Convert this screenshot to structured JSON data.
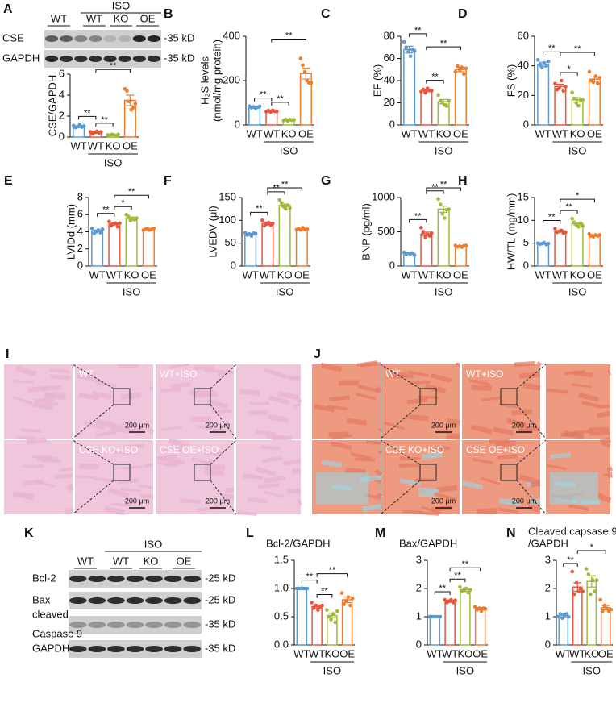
{
  "chart_data": [
    {
      "type": "bar",
      "ylabel": [
        "CSE/GAPDH"
      ],
      "categories": [
        "WT",
        "WT",
        "KO",
        "OE"
      ],
      "group_label": "ISO",
      "colors": [
        "#5b9bd5",
        "#e8553e",
        "#9dbb3a",
        "#f07b2a"
      ],
      "values": [
        1.0,
        0.45,
        0.2,
        3.5
      ],
      "errors": [
        0.1,
        0.1,
        0.04,
        0.5
      ],
      "points": [
        [
          1.1,
          0.9,
          1.0,
          1.2,
          0.95,
          1.05
        ],
        [
          0.5,
          0.3,
          0.45,
          0.55,
          0.4,
          0.5
        ],
        [
          0.2,
          0.15,
          0.25,
          0.2,
          0.1,
          0.25
        ],
        [
          4.6,
          4.4,
          3.4,
          2.6,
          2.8,
          3.2
        ]
      ],
      "ylim": [
        0,
        6
      ],
      "yticks": [
        0,
        2,
        4,
        6
      ],
      "brackets": [
        {
          "pair": [
            0,
            1
          ],
          "label": "**"
        },
        {
          "pair": [
            1,
            2
          ],
          "label": "**"
        },
        {
          "pair": [
            1,
            3
          ],
          "label": "**"
        }
      ]
    },
    {
      "type": "bar",
      "panel": "B",
      "ylabel": [
        "H₂S levels",
        "(nmol/mg protein)"
      ],
      "categories": [
        "WT",
        "WT",
        "KO",
        "OE"
      ],
      "group_label": "ISO",
      "colors": [
        "#5b9bd5",
        "#e8553e",
        "#9dbb3a",
        "#f07b2a"
      ],
      "values": [
        80,
        62,
        22,
        232
      ],
      "errors": [
        5,
        4,
        3,
        25
      ],
      "points": [
        [
          85,
          78,
          82,
          75,
          80,
          84
        ],
        [
          60,
          65,
          58,
          66,
          62,
          61
        ],
        [
          20,
          25,
          18,
          24,
          22,
          23
        ],
        [
          300,
          270,
          240,
          200,
          190,
          190
        ]
      ],
      "ylim": [
        0,
        400
      ],
      "yticks": [
        0,
        200,
        400
      ],
      "brackets": [
        {
          "pair": [
            0,
            1
          ],
          "label": "**"
        },
        {
          "pair": [
            1,
            2
          ],
          "label": "**"
        },
        {
          "pair": [
            1,
            3
          ],
          "label": "**"
        }
      ]
    },
    {
      "type": "bar",
      "panel": "C",
      "ylabel": [
        "EF (%)"
      ],
      "categories": [
        "WT",
        "WT",
        "KO",
        "OE"
      ],
      "group_label": "ISO",
      "colors": [
        "#5b9bd5",
        "#e8553e",
        "#9dbb3a",
        "#f07b2a"
      ],
      "values": [
        68,
        31,
        21,
        50
      ],
      "errors": [
        3,
        1,
        2,
        2
      ],
      "points": [
        [
          75,
          70,
          66,
          62,
          68,
          67
        ],
        [
          30,
          32,
          29,
          33,
          31,
          31
        ],
        [
          27,
          22,
          20,
          18,
          17,
          22
        ],
        [
          48,
          53,
          50,
          52,
          46,
          51
        ]
      ],
      "ylim": [
        0,
        80
      ],
      "yticks": [
        0,
        20,
        40,
        60,
        80
      ],
      "brackets": [
        {
          "pair": [
            0,
            1
          ],
          "label": "**"
        },
        {
          "pair": [
            1,
            2
          ],
          "label": "**"
        },
        {
          "pair": [
            1,
            3
          ],
          "label": "**"
        }
      ]
    },
    {
      "type": "bar",
      "panel": "D",
      "ylabel": [
        "FS (%)"
      ],
      "categories": [
        "WT",
        "WT",
        "KO",
        "OE"
      ],
      "group_label": "ISO",
      "colors": [
        "#5b9bd5",
        "#e8553e",
        "#9dbb3a",
        "#f07b2a"
      ],
      "values": [
        41,
        26,
        17,
        31
      ],
      "errors": [
        1.5,
        1.5,
        1.5,
        1.5
      ],
      "points": [
        [
          44,
          41,
          39,
          42,
          40,
          43
        ],
        [
          28,
          24,
          25,
          30,
          23,
          26
        ],
        [
          22,
          18,
          15,
          13,
          17,
          17
        ],
        [
          36,
          30,
          29,
          33,
          28,
          32
        ]
      ],
      "ylim": [
        0,
        60
      ],
      "yticks": [
        0,
        20,
        40,
        60
      ],
      "brackets": [
        {
          "pair": [
            0,
            1
          ],
          "label": "**"
        },
        {
          "pair": [
            1,
            2
          ],
          "label": "*"
        },
        {
          "pair": [
            1,
            3
          ],
          "label": "**"
        }
      ]
    },
    {
      "type": "bar",
      "panel": "E",
      "ylabel": [
        "LVIDd (mm)"
      ],
      "categories": [
        "WT",
        "WT",
        "KO",
        "OE"
      ],
      "group_label": "ISO",
      "colors": [
        "#5b9bd5",
        "#e8553e",
        "#9dbb3a",
        "#f07b2a"
      ],
      "values": [
        4.1,
        4.9,
        5.6,
        4.3
      ],
      "errors": [
        0.1,
        0.1,
        0.12,
        0.05
      ],
      "points": [
        [
          4.4,
          3.8,
          4.0,
          4.2,
          3.9,
          4.3
        ],
        [
          5.2,
          4.7,
          4.9,
          5.0,
          4.6,
          5.0
        ],
        [
          6.0,
          5.8,
          5.3,
          5.5,
          5.4,
          5.6
        ],
        [
          4.2,
          4.3,
          4.4,
          4.2,
          4.3,
          4.4
        ]
      ],
      "ylim": [
        0,
        8
      ],
      "yticks": [
        0,
        2,
        4,
        6,
        8
      ],
      "brackets": [
        {
          "pair": [
            0,
            1
          ],
          "label": "**"
        },
        {
          "pair": [
            1,
            2
          ],
          "label": "*"
        },
        {
          "pair": [
            1,
            3
          ],
          "label": "**"
        }
      ]
    },
    {
      "type": "bar",
      "panel": "F",
      "ylabel": [
        "LVEDV (μl)"
      ],
      "categories": [
        "WT",
        "WT",
        "KO",
        "OE"
      ],
      "group_label": "ISO",
      "colors": [
        "#5b9bd5",
        "#e8553e",
        "#9dbb3a",
        "#f07b2a"
      ],
      "values": [
        70,
        93,
        133,
        81
      ],
      "errors": [
        1.5,
        3,
        3,
        1
      ],
      "points": [
        [
          73,
          68,
          70,
          66,
          72,
          71
        ],
        [
          100,
          88,
          92,
          95,
          90,
          93
        ],
        [
          145,
          138,
          130,
          125,
          133,
          127
        ],
        [
          80,
          82,
          79,
          84,
          80,
          81
        ]
      ],
      "ylim": [
        0,
        150
      ],
      "yticks": [
        0,
        50,
        100,
        150
      ],
      "brackets": [
        {
          "pair": [
            0,
            1
          ],
          "label": "**"
        },
        {
          "pair": [
            1,
            2
          ],
          "label": "**"
        },
        {
          "pair": [
            1,
            3
          ],
          "label": "**"
        }
      ]
    },
    {
      "type": "bar",
      "panel": "G",
      "ylabel": [
        "BNP (pg/ml)"
      ],
      "categories": [
        "WT",
        "WT",
        "KO",
        "OE"
      ],
      "group_label": "ISO",
      "colors": [
        "#5b9bd5",
        "#e8553e",
        "#9dbb3a",
        "#f07b2a"
      ],
      "values": [
        180,
        470,
        830,
        290
      ],
      "errors": [
        8,
        25,
        45,
        8
      ],
      "points": [
        [
          200,
          170,
          185,
          175,
          190,
          160
        ],
        [
          560,
          500,
          420,
          460,
          440,
          480
        ],
        [
          980,
          900,
          760,
          700,
          820,
          830
        ],
        [
          300,
          280,
          290,
          275,
          295,
          300
        ]
      ],
      "ylim": [
        0,
        1000
      ],
      "yticks": [
        0,
        500,
        1000
      ],
      "brackets": [
        {
          "pair": [
            0,
            1
          ],
          "label": "**"
        },
        {
          "pair": [
            1,
            2
          ],
          "label": "**"
        },
        {
          "pair": [
            1,
            3
          ],
          "label": "**"
        }
      ]
    },
    {
      "type": "bar",
      "panel": "H",
      "ylabel": [
        "HW/TL (mg/mm)"
      ],
      "categories": [
        "WT",
        "WT",
        "KO",
        "OE"
      ],
      "group_label": "ISO",
      "colors": [
        "#5b9bd5",
        "#e8553e",
        "#9dbb3a",
        "#f07b2a"
      ],
      "values": [
        4.9,
        7.6,
        9.3,
        6.7
      ],
      "errors": [
        0.1,
        0.2,
        0.3,
        0.15
      ],
      "points": [
        [
          5.0,
          4.8,
          4.9,
          5.1,
          4.7,
          4.9
        ],
        [
          8.2,
          7.4,
          7.6,
          7.8,
          7.2,
          7.4
        ],
        [
          10.4,
          9.6,
          9.0,
          8.6,
          9.4,
          8.8
        ],
        [
          7.0,
          6.6,
          6.4,
          6.8,
          6.6,
          6.8
        ]
      ],
      "ylim": [
        0,
        15
      ],
      "yticks": [
        0,
        5,
        10,
        15
      ],
      "brackets": [
        {
          "pair": [
            0,
            1
          ],
          "label": "**"
        },
        {
          "pair": [
            1,
            2
          ],
          "label": "**"
        },
        {
          "pair": [
            1,
            3
          ],
          "label": "*"
        }
      ]
    },
    {
      "type": "bar",
      "panel": "L",
      "title": [
        "Bcl-2/GAPDH"
      ],
      "categories": [
        "WT",
        "WT",
        "KO",
        "OE"
      ],
      "group_label": "ISO",
      "colors": [
        "#5b9bd5",
        "#e8553e",
        "#9dbb3a",
        "#f07b2a"
      ],
      "values": [
        1.0,
        0.68,
        0.52,
        0.8
      ],
      "errors": [
        0.005,
        0.03,
        0.04,
        0.05
      ],
      "points": [
        [
          1,
          1,
          1,
          1,
          1,
          1
        ],
        [
          0.75,
          0.65,
          0.7,
          0.62,
          0.68,
          0.7
        ],
        [
          0.62,
          0.5,
          0.45,
          0.55,
          0.4,
          0.6
        ],
        [
          0.92,
          0.72,
          0.78,
          0.85,
          0.7,
          0.82
        ]
      ],
      "ylim": [
        0,
        1.5
      ],
      "yticks": [
        {
          "value": 0,
          "label": "0.0"
        },
        {
          "value": 0.5,
          "label": "0.5"
        },
        {
          "value": 1,
          "label": "1.0"
        },
        {
          "value": 1.5,
          "label": "1.5"
        }
      ],
      "brackets": [
        {
          "pair": [
            0,
            1
          ],
          "label": "**"
        },
        {
          "pair": [
            1,
            2
          ],
          "label": "**"
        },
        {
          "pair": [
            1,
            3
          ],
          "label": "**"
        }
      ]
    },
    {
      "type": "bar",
      "panel": "M",
      "title": [
        "Bax/GAPDH"
      ],
      "categories": [
        "WT",
        "WT",
        "KO",
        "OE"
      ],
      "group_label": "ISO",
      "colors": [
        "#5b9bd5",
        "#e8553e",
        "#9dbb3a",
        "#f07b2a"
      ],
      "values": [
        1.0,
        1.55,
        1.95,
        1.28
      ],
      "errors": [
        0.005,
        0.04,
        0.06,
        0.04
      ],
      "points": [
        [
          1,
          1,
          1,
          1,
          1,
          1
        ],
        [
          1.6,
          1.5,
          1.55,
          1.6,
          1.5,
          1.58
        ],
        [
          2.05,
          1.9,
          1.95,
          2.0,
          1.85,
          1.95
        ],
        [
          1.35,
          1.25,
          1.3,
          1.2,
          1.3,
          1.28
        ]
      ],
      "ylim": [
        0,
        3
      ],
      "yticks": [
        0,
        1,
        2,
        3
      ],
      "brackets": [
        {
          "pair": [
            0,
            1
          ],
          "label": "**"
        },
        {
          "pair": [
            1,
            2
          ],
          "label": "**"
        },
        {
          "pair": [
            1,
            3
          ],
          "label": "**"
        }
      ]
    },
    {
      "type": "bar",
      "panel": "N",
      "title": [
        "Cleaved capsase 9",
        "/GAPDH"
      ],
      "categories": [
        "WT",
        "WT",
        "KO",
        "OE"
      ],
      "group_label": "ISO",
      "colors": [
        "#5b9bd5",
        "#e8553e",
        "#9dbb3a",
        "#f07b2a"
      ],
      "values": [
        1.05,
        2.05,
        2.25,
        1.32
      ],
      "errors": [
        0.05,
        0.15,
        0.2,
        0.08
      ],
      "points": [
        [
          1.0,
          1.1,
          0.95,
          1.05,
          1.1,
          1.0
        ],
        [
          2.6,
          1.8,
          2.2,
          1.9,
          2.0,
          1.9
        ],
        [
          2.7,
          2.5,
          1.8,
          2.3,
          1.9,
          2.3
        ],
        [
          1.6,
          1.2,
          1.4,
          1.3,
          1.2,
          1.25
        ]
      ],
      "ylim": [
        0,
        3
      ],
      "yticks": [
        0,
        1,
        2,
        3
      ],
      "brackets": [
        {
          "pair": [
            0,
            1
          ],
          "label": "**"
        },
        {
          "pair": [
            1,
            3
          ],
          "label": "*"
        }
      ]
    }
  ],
  "blots": [
    {
      "panel": "A",
      "group_label": "ISO",
      "lanes": [
        "WT",
        "WT",
        "KO",
        "OE"
      ],
      "rows": [
        {
          "name": [
            "CSE"
          ],
          "size": "-35 kD"
        },
        {
          "name": [
            "GAPDH"
          ],
          "size": "-35 kD"
        }
      ]
    },
    {
      "panel": "K",
      "group_label": "ISO",
      "lanes": [
        "WT",
        "WT",
        "KO",
        "OE"
      ],
      "rows": [
        {
          "name": [
            "Bcl-2"
          ],
          "size": "-25 kD"
        },
        {
          "name": [
            "Bax"
          ],
          "size": "-25 kD"
        },
        {
          "name": [
            "cleaved",
            "Caspase 9"
          ],
          "size": "-35 kD"
        },
        {
          "name": [
            "GAPDH"
          ],
          "size": "-35 kD"
        }
      ]
    }
  ],
  "histology": [
    {
      "panel": "I",
      "images": [
        {
          "label": "WT",
          "scale": "200 μm"
        },
        {
          "label": "WT+ISO",
          "scale": "200 μm"
        },
        {
          "label": "CSE KO+ISO",
          "scale": "200 μm"
        },
        {
          "label": "CSE OE+ISO",
          "scale": "200 μm"
        }
      ]
    },
    {
      "panel": "J",
      "images": [
        {
          "label": "WT",
          "scale": "200 μm"
        },
        {
          "label": "WT+ISO",
          "scale": "200 μm"
        },
        {
          "label": "CSE KO+ISO",
          "scale": "200 μm"
        },
        {
          "label": "CSE OE+ISO",
          "scale": "200 μm"
        }
      ]
    }
  ]
}
